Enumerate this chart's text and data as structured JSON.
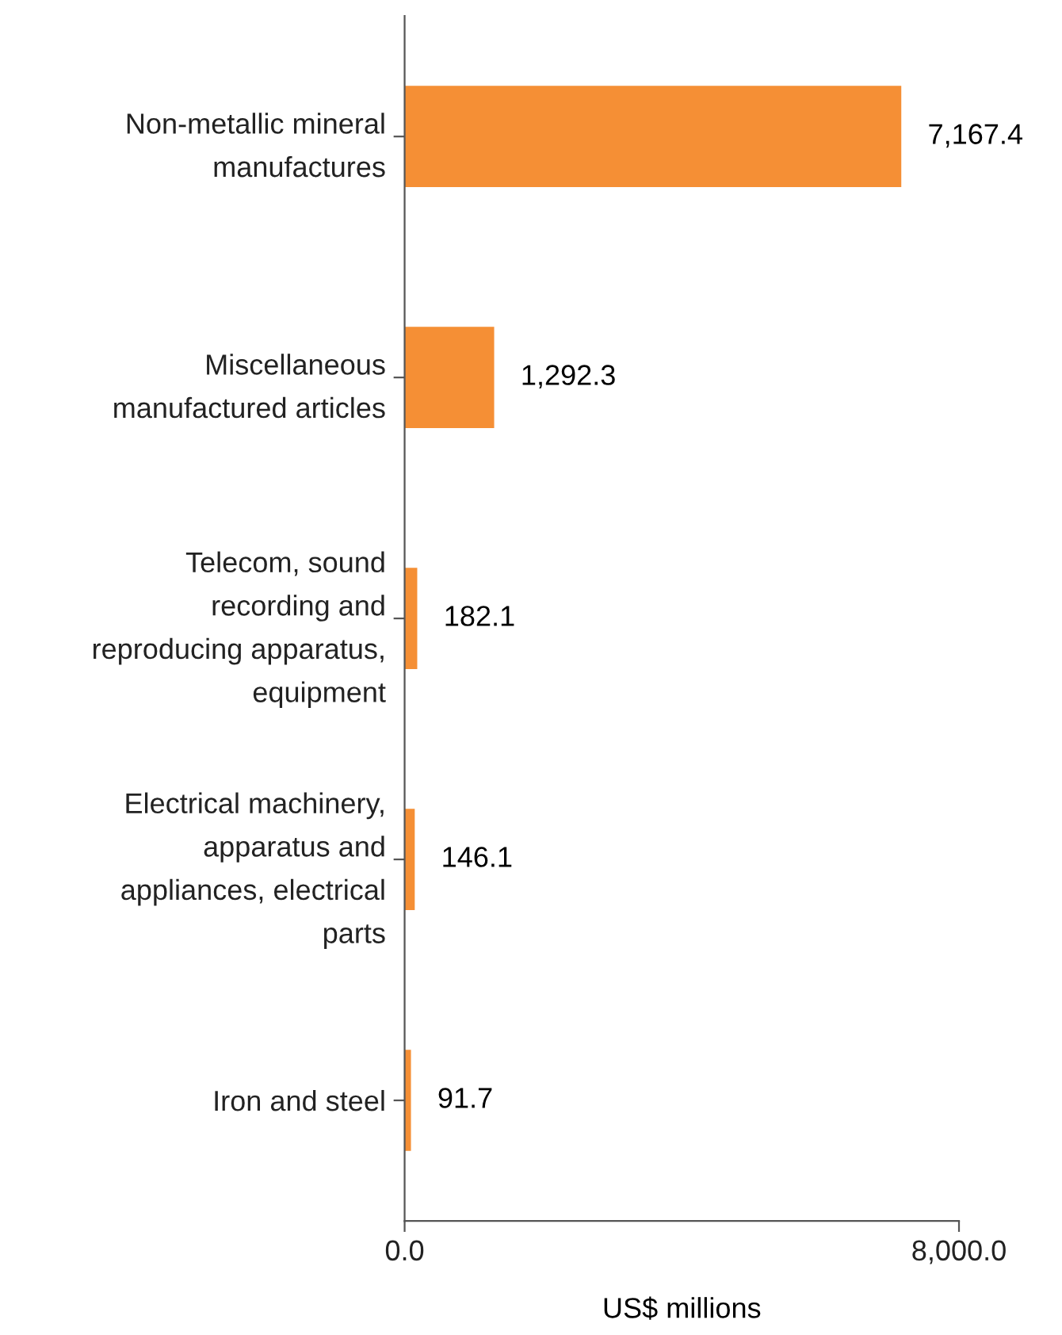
{
  "chart_data": {
    "type": "bar",
    "orientation": "horizontal",
    "xlabel": "US$ millions",
    "categories": [
      "Non-metallic mineral\nmanufactures",
      "Miscellaneous\nmanufactured articles",
      "Telecom, sound\nrecording and\nreproducing apparatus,\nequipment",
      "Electrical machinery,\napparatus and\nappliances, electrical\nparts",
      "Iron and steel"
    ],
    "values": [
      7167.4,
      1292.3,
      182.1,
      146.1,
      91.7
    ],
    "value_labels": [
      "7,167.4",
      "1,292.3",
      "182.1",
      "146.1",
      "91.7"
    ],
    "color": "#f58f35",
    "xlim": [
      0,
      8000
    ],
    "xticks": [
      {
        "value": 0,
        "label": "0.0"
      },
      {
        "value": 8000,
        "label": "8,000.0"
      }
    ],
    "grid": false,
    "legend": false
  }
}
